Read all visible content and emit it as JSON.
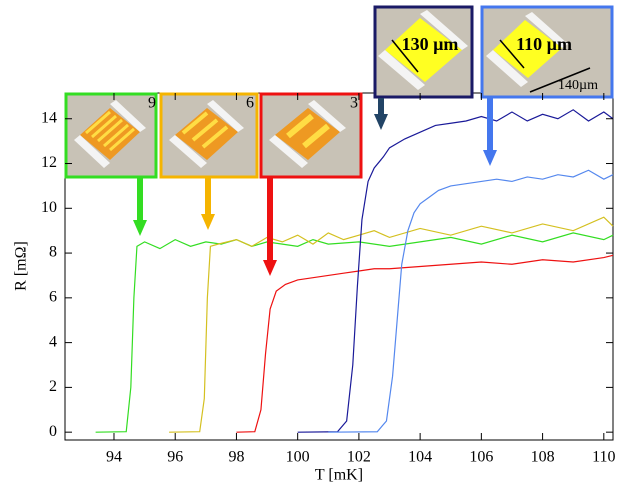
{
  "chart_data": {
    "type": "line",
    "x_label": "T  [mK]",
    "y_label": "R  [mΩ]",
    "xlim": [
      92.4,
      110.3
    ],
    "ylim": [
      -0.35,
      15.15
    ],
    "xticks": [
      94,
      96,
      98,
      100,
      102,
      104,
      106,
      108,
      110
    ],
    "yticks": [
      0,
      2,
      4,
      6,
      8,
      10,
      12,
      14
    ],
    "series": [
      {
        "name": "9",
        "color": "#33dd22",
        "x": [
          93.4,
          94.4,
          94.55,
          94.65,
          94.75,
          95,
          95.5,
          96,
          96.5,
          97,
          97.5,
          98,
          98.5,
          99,
          99.5,
          100,
          100.5,
          101,
          102,
          103,
          104,
          105,
          106,
          107,
          108,
          109,
          110,
          110.3
        ],
        "values": [
          0,
          0.02,
          2,
          6,
          8.3,
          8.5,
          8.2,
          8.6,
          8.3,
          8.5,
          8.4,
          8.6,
          8.3,
          8.5,
          8.4,
          8.3,
          8.6,
          8.4,
          8.5,
          8.3,
          8.5,
          8.7,
          8.4,
          8.8,
          8.5,
          8.9,
          8.6,
          8.8
        ]
      },
      {
        "name": "6",
        "color": "#d4c020",
        "x": [
          95.8,
          96.8,
          96.95,
          97.05,
          97.15,
          97.4,
          98,
          98.5,
          99,
          99.5,
          100,
          100.5,
          101,
          101.5,
          102,
          102.5,
          103,
          104,
          105,
          106,
          107,
          108,
          109,
          110,
          110.3
        ],
        "values": [
          0,
          0.02,
          1.5,
          6,
          8.3,
          8.4,
          8.6,
          8.3,
          8.7,
          8.5,
          8.8,
          8.4,
          8.9,
          8.6,
          8.8,
          9.0,
          8.7,
          9.1,
          8.8,
          9.2,
          8.9,
          9.3,
          9.0,
          9.6,
          9.2
        ]
      },
      {
        "name": "3",
        "color": "#ee1111",
        "x": [
          98,
          98.6,
          98.8,
          98.95,
          99.1,
          99.3,
          99.6,
          100,
          100.5,
          101,
          101.5,
          102,
          102.5,
          103,
          104,
          105,
          106,
          107,
          108,
          109,
          110,
          110.3
        ],
        "values": [
          0,
          0.02,
          1,
          3.5,
          5.5,
          6.3,
          6.6,
          6.8,
          6.9,
          7.0,
          7.1,
          7.2,
          7.3,
          7.3,
          7.4,
          7.5,
          7.6,
          7.5,
          7.7,
          7.6,
          7.8,
          7.9
        ]
      },
      {
        "name": "130 µm",
        "color": "#1a1a99",
        "x": [
          100,
          101.3,
          101.6,
          101.8,
          101.95,
          102.1,
          102.3,
          102.5,
          102.8,
          103,
          103.5,
          104,
          104.5,
          105,
          105.5,
          106,
          106.5,
          107,
          107.5,
          108,
          108.5,
          109,
          109.5,
          110,
          110.3
        ],
        "values": [
          0,
          0.02,
          0.5,
          3,
          6.5,
          9.5,
          11.2,
          11.8,
          12.3,
          12.7,
          13.1,
          13.4,
          13.7,
          13.8,
          13.9,
          14.1,
          13.9,
          14.3,
          13.9,
          14.2,
          14.0,
          14.4,
          13.9,
          14.3,
          14.0
        ]
      },
      {
        "name": "110 µm",
        "color": "#5588ee",
        "x": [
          101,
          102.6,
          102.9,
          103.1,
          103.25,
          103.4,
          103.6,
          103.8,
          104,
          104.3,
          104.6,
          105,
          105.5,
          106,
          106.5,
          107,
          107.5,
          108,
          108.5,
          109,
          109.5,
          110,
          110.3
        ],
        "values": [
          0,
          0.02,
          0.5,
          2.5,
          5,
          7.5,
          9,
          9.8,
          10.2,
          10.5,
          10.8,
          11,
          11.1,
          11.2,
          11.3,
          11.2,
          11.4,
          11.3,
          11.5,
          11.4,
          11.7,
          11.3,
          11.5
        ]
      }
    ],
    "annotations": [
      "140µm"
    ]
  }
}
